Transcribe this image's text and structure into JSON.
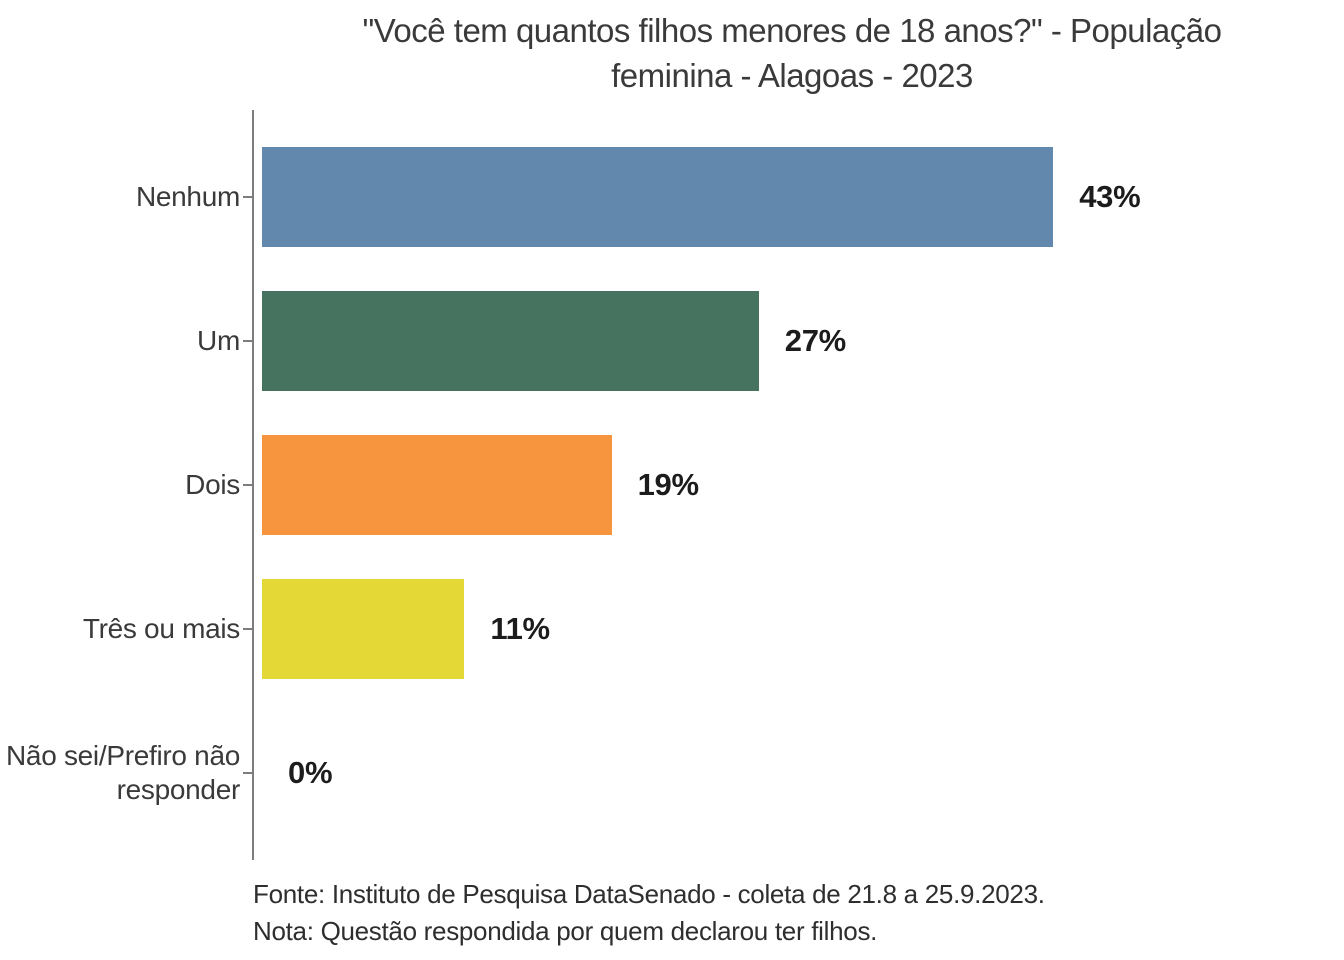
{
  "chart_data": {
    "type": "bar",
    "orientation": "horizontal",
    "title": "\"Você tem quantos filhos menores de 18 anos?\" - População feminina - Alagoas - 2023",
    "title_lines": [
      "\"Você tem quantos filhos menores de 18 anos?\" - População",
      "feminina - Alagoas - 2023"
    ],
    "categories": [
      "Nenhum",
      "Um",
      "Dois",
      "Três ou mais",
      "Não sei/Prefiro não responder"
    ],
    "values": [
      43,
      27,
      19,
      11,
      0
    ],
    "value_labels": [
      "43%",
      "27%",
      "19%",
      "11%",
      "0%"
    ],
    "bar_colors": [
      "#6289ad",
      "#45735f",
      "#f7943e",
      "#e3d836",
      null
    ],
    "xlim": [
      0,
      50
    ],
    "grid": false,
    "legend": null,
    "axis_color": "#7d7d7d",
    "label_color": "#3a3a3a",
    "value_label_color": "#1c1c1c"
  },
  "footer": {
    "source": "Fonte: Instituto de Pesquisa DataSenado - coleta de 21.8 a 25.9.2023.",
    "note": "Nota: Questão respondida por quem declarou ter filhos."
  }
}
